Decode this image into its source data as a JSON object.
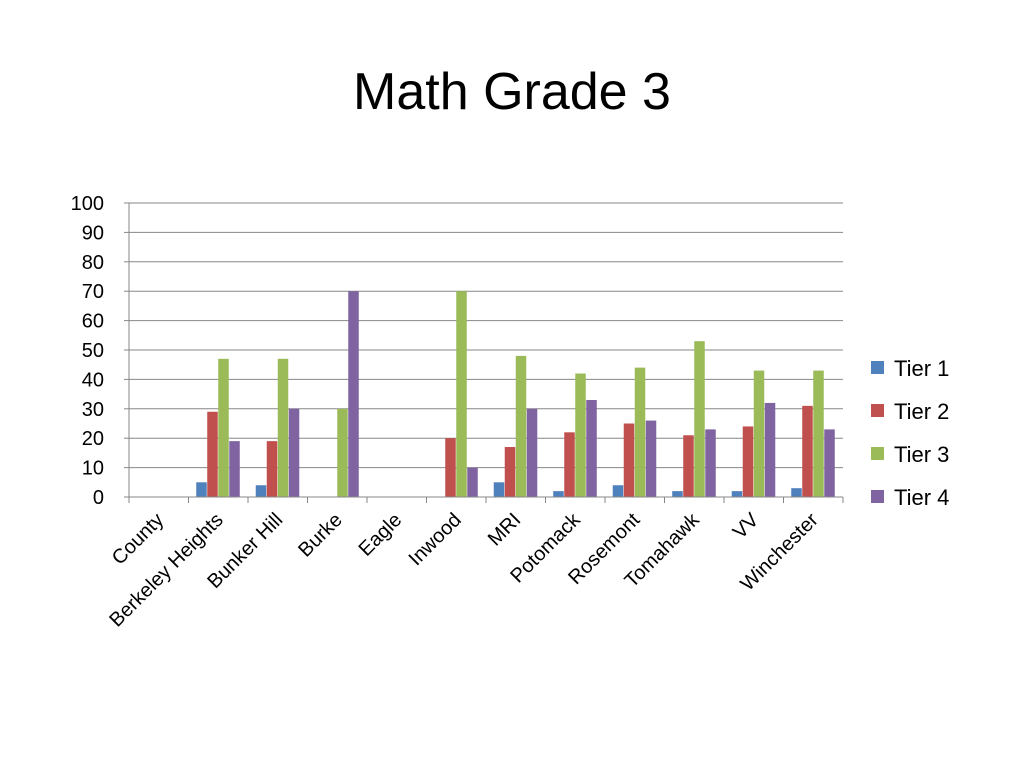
{
  "chart_data": {
    "type": "bar",
    "title": "Math Grade 3",
    "xlabel": "",
    "ylabel": "",
    "ylim": [
      0,
      100
    ],
    "yticks": [
      0,
      10,
      20,
      30,
      40,
      50,
      60,
      70,
      80,
      90,
      100
    ],
    "grid": true,
    "legend_position": "right",
    "categories": [
      "County",
      "Berkeley Heights",
      "Bunker Hill",
      "Burke",
      "Eagle",
      "Inwood",
      "MRI",
      "Potomack",
      "Rosemont",
      "Tomahawk",
      "VV",
      "Winchester"
    ],
    "series": [
      {
        "name": "Tier 1",
        "color": "#4F81BD",
        "values": [
          0,
          5,
          4,
          0,
          0,
          0,
          5,
          2,
          4,
          2,
          2,
          3
        ]
      },
      {
        "name": "Tier 2",
        "color": "#C0504D",
        "values": [
          0,
          29,
          19,
          0,
          0,
          20,
          17,
          22,
          25,
          21,
          24,
          31
        ]
      },
      {
        "name": "Tier 3",
        "color": "#9BBB59",
        "values": [
          0,
          47,
          47,
          30,
          0,
          70,
          48,
          42,
          44,
          53,
          43,
          43
        ]
      },
      {
        "name": "Tier 4",
        "color": "#8064A2",
        "values": [
          0,
          19,
          30,
          70,
          0,
          10,
          30,
          33,
          26,
          23,
          32,
          23
        ]
      }
    ]
  }
}
